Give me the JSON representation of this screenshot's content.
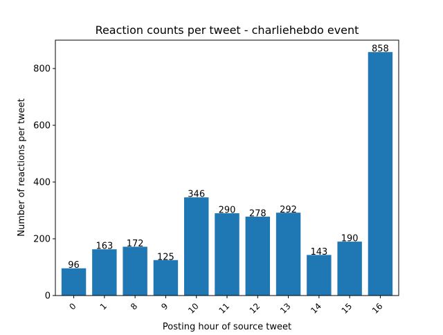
{
  "chart_data": {
    "type": "bar",
    "title": "Reaction counts per tweet - charliehebdo event",
    "xlabel": "Posting hour of source tweet",
    "ylabel": "Number of reactions per tweet",
    "categories": [
      "0",
      "1",
      "8",
      "9",
      "10",
      "11",
      "12",
      "13",
      "14",
      "15",
      "16"
    ],
    "values": [
      96,
      163,
      172,
      125,
      346,
      290,
      278,
      292,
      143,
      190,
      858
    ],
    "data_labels": [
      "96",
      "163",
      "172",
      "125",
      "346",
      "290",
      "278",
      "292",
      "143",
      "190",
      "858"
    ],
    "ylim": [
      0,
      900
    ],
    "yticks": [
      0,
      200,
      400,
      600,
      800
    ],
    "ytick_labels": [
      "0",
      "200",
      "400",
      "600",
      "800"
    ],
    "bar_color": "#1f77b4",
    "grid": false,
    "legend": "none",
    "xtick_rotation": "45 degrees"
  }
}
